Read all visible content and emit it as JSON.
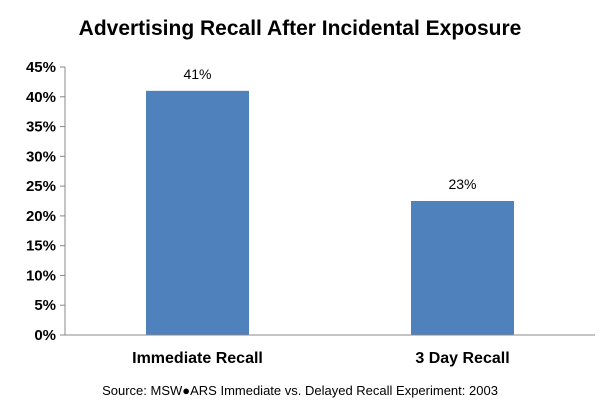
{
  "chart_data": {
    "type": "bar",
    "title": "Advertising Recall After Incidental Exposure",
    "categories": [
      "Immediate Recall",
      "3 Day Recall"
    ],
    "values": [
      41,
      22.5
    ],
    "data_labels": [
      "41%",
      "23%"
    ],
    "ylim": [
      0,
      45
    ],
    "y_ticks": [
      "0%",
      "5%",
      "10%",
      "15%",
      "20%",
      "25%",
      "30%",
      "35%",
      "40%",
      "45%"
    ],
    "bar_color": "#4f81bd",
    "grid": false,
    "legend": "none",
    "source": "Source: MSW●ARS Immediate vs. Delayed Recall Experiment: 2003"
  }
}
